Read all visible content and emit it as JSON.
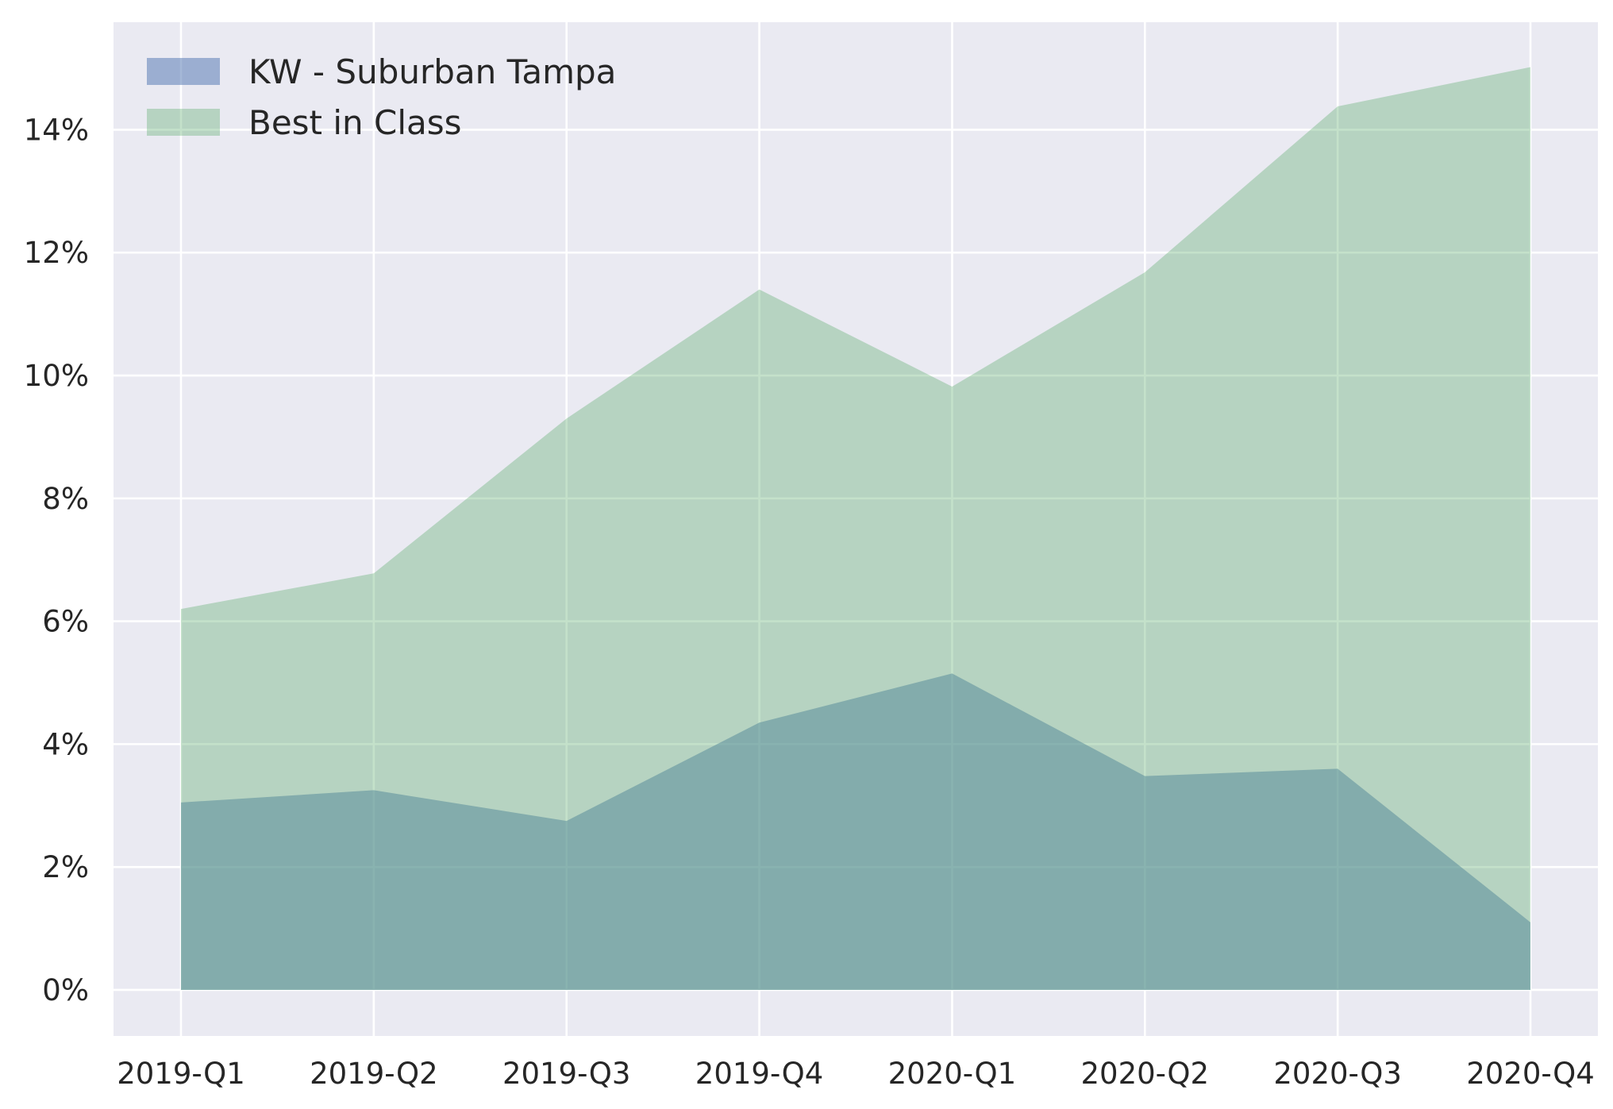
{
  "chart_data": {
    "type": "area",
    "categories": [
      "2019-Q1",
      "2019-Q2",
      "2019-Q3",
      "2019-Q4",
      "2020-Q1",
      "2020-Q2",
      "2020-Q3",
      "2020-Q4"
    ],
    "series": [
      {
        "name": "KW - Suburban Tampa",
        "values": [
          3.05,
          3.25,
          2.75,
          4.35,
          5.15,
          3.48,
          3.6,
          1.1
        ],
        "color": "#4c72b0"
      },
      {
        "name": "Best in Class",
        "values": [
          6.2,
          6.78,
          9.3,
          11.4,
          9.82,
          11.68,
          14.38,
          15.02
        ],
        "color": "#55a868"
      }
    ],
    "y_tick_values": [
      0,
      2,
      4,
      6,
      8,
      10,
      12,
      14
    ],
    "y_tick_labels": [
      "0%",
      "2%",
      "4%",
      "6%",
      "8%",
      "10%",
      "12%",
      "14%"
    ],
    "y_format": "percent",
    "ylim": [
      -0.75,
      15.75
    ],
    "grid": true,
    "legend_position": "top-left",
    "background_color": "#eaeaf2",
    "grid_color": "#ffffff"
  }
}
